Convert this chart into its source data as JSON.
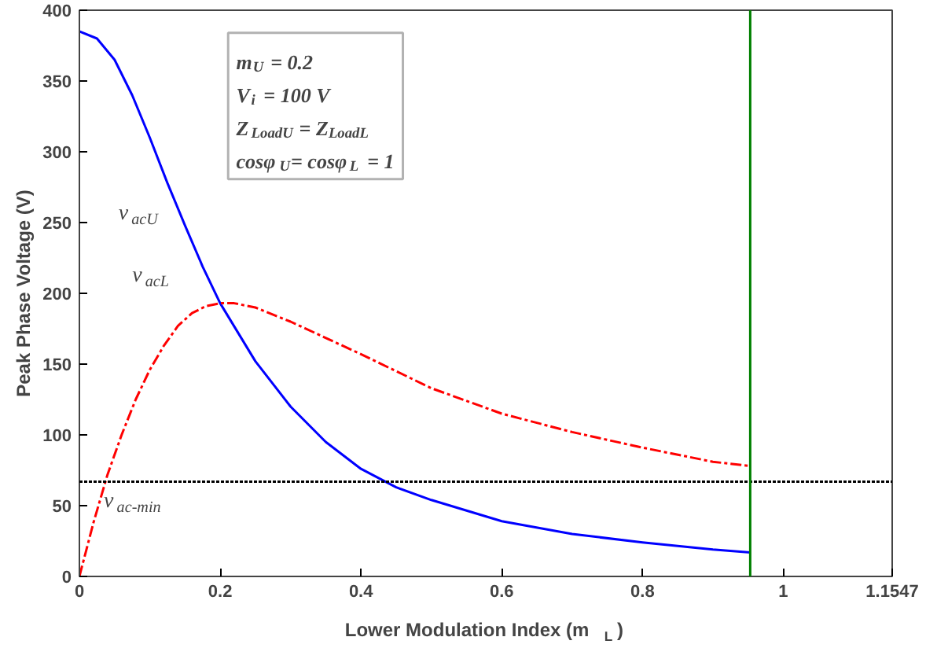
{
  "chart_data": {
    "type": "line",
    "xlabel": "Lower Modulation Index (m$_{L}$)",
    "ylabel": "Peak Phase Voltage (V)",
    "xlim": [
      0,
      1.1547
    ],
    "ylim": [
      0,
      400
    ],
    "xticks": [
      0,
      0.2,
      0.4,
      0.6,
      0.8,
      1,
      1.1547
    ],
    "yticks": [
      0,
      50,
      100,
      150,
      200,
      250,
      300,
      350,
      400
    ],
    "grid": false,
    "marker": "none",
    "series": [
      {
        "color": "#0000ff",
        "line_style": "solid",
        "x": [
          0,
          0.025,
          0.05,
          0.075,
          0.1,
          0.125,
          0.15,
          0.175,
          0.2,
          0.25,
          0.3,
          0.35,
          0.4,
          0.45,
          0.5,
          0.6,
          0.7,
          0.8,
          0.9,
          0.953
        ],
        "values": [
          385,
          380,
          365,
          340,
          310,
          278,
          248,
          219,
          193,
          152,
          120,
          95,
          76,
          63,
          54,
          39,
          30,
          24,
          19,
          17
        ]
      },
      {
        "color": "#ff0000",
        "line_style": "dashed",
        "x": [
          0,
          0.02,
          0.04,
          0.06,
          0.08,
          0.1,
          0.12,
          0.14,
          0.16,
          0.18,
          0.2,
          0.22,
          0.25,
          0.3,
          0.4,
          0.5,
          0.6,
          0.7,
          0.8,
          0.9,
          0.953
        ],
        "values": [
          0,
          38,
          72,
          100,
          125,
          146,
          163,
          177,
          186,
          191,
          193,
          193,
          190,
          180,
          157,
          133,
          115,
          102,
          91,
          81,
          78
        ]
      }
    ],
    "ref_lines": [
      {
        "axis": "y",
        "value": 67,
        "label": "v$_{ac-min}$",
        "color": "#000000",
        "line_style": "dotted"
      },
      {
        "axis": "x",
        "value": 0.953,
        "color": "#007f00",
        "line_style": "solid"
      }
    ],
    "annotations": [
      "v$_{acU}$",
      "v$_{acL}$",
      "m$_{U}$ = 0.2",
      "V$_{i}$ = 100 V",
      "Z$_{LoadU}$ = Z$_{LoadL}$",
      "cosφ$_{U}$= cosφ$_{L}$ = 1"
    ]
  }
}
